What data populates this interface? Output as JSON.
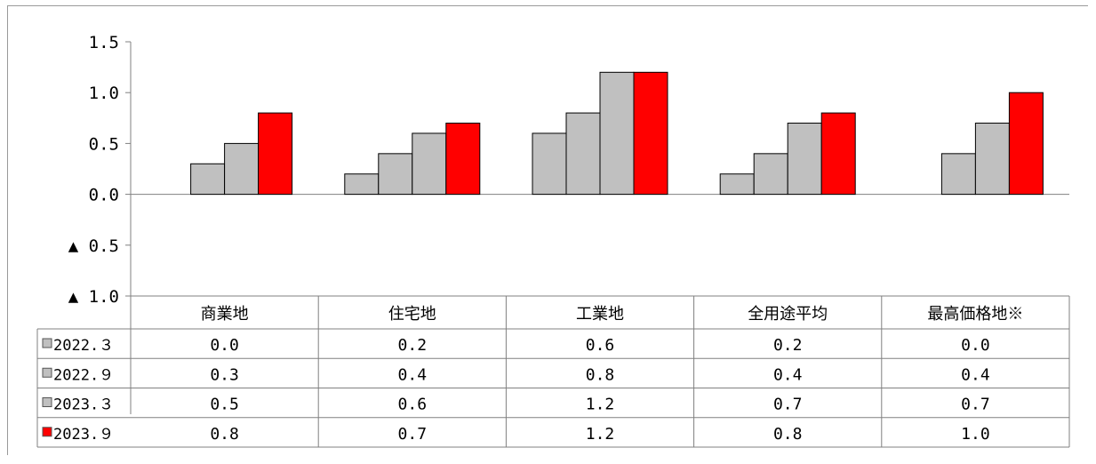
{
  "chart_data": {
    "type": "bar",
    "categories": [
      "商業地",
      "住宅地",
      "工業地",
      "全用途平均",
      "最高価格地※"
    ],
    "series": [
      {
        "name": "2022.３",
        "values": [
          0.0,
          0.2,
          0.6,
          0.2,
          0.0
        ],
        "color": "#c0c0c0",
        "cells": [
          "0.0",
          "0.2",
          "0.6",
          "0.2",
          "0.0"
        ]
      },
      {
        "name": "2022.９",
        "values": [
          0.3,
          0.4,
          0.8,
          0.4,
          0.4
        ],
        "color": "#c0c0c0",
        "cells": [
          "0.3",
          "0.4",
          "0.8",
          "0.4",
          "0.4"
        ]
      },
      {
        "name": "2023.３",
        "values": [
          0.5,
          0.6,
          1.2,
          0.7,
          0.7
        ],
        "color": "#c0c0c0",
        "cells": [
          "0.5",
          "0.6",
          "1.2",
          "0.7",
          "0.7"
        ]
      },
      {
        "name": "2023.９",
        "values": [
          0.8,
          0.7,
          1.2,
          0.8,
          1.0
        ],
        "color": "#ff0000",
        "cells": [
          "0.8",
          "0.7",
          "1.2",
          "0.8",
          "1.0"
        ]
      }
    ],
    "ylim": [
      -1.0,
      1.5
    ],
    "yticks": [
      {
        "value": 1.5,
        "label": "1.5"
      },
      {
        "value": 1.0,
        "label": "1.0"
      },
      {
        "value": 0.5,
        "label": "0.5"
      },
      {
        "value": 0.0,
        "label": "0.0"
      },
      {
        "value": -0.5,
        "label": "▲ 0.5"
      },
      {
        "value": -1.0,
        "label": "▲ 1.0"
      }
    ],
    "title": "",
    "xlabel": "",
    "ylabel": "",
    "grid": false,
    "legend": "data-table"
  }
}
